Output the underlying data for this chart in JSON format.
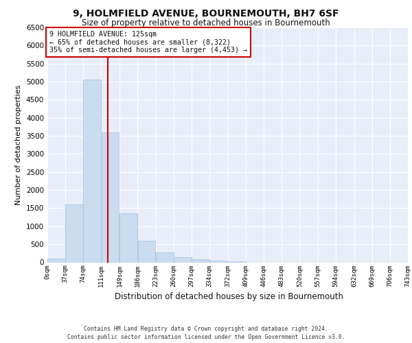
{
  "title": "9, HOLMFIELD AVENUE, BOURNEMOUTH, BH7 6SF",
  "subtitle": "Size of property relative to detached houses in Bournemouth",
  "xlabel": "Distribution of detached houses by size in Bournemouth",
  "ylabel": "Number of detached properties",
  "bar_color": "#c9dcf0",
  "bar_edge_color": "#aac4e0",
  "bg_color": "#e8eef8",
  "grid_color": "#ffffff",
  "annotation_box_color": "#cc0000",
  "property_line_color": "#cc0000",
  "property_value": 125,
  "annotation_line1": "9 HOLMFIELD AVENUE: 125sqm",
  "annotation_line2": "← 65% of detached houses are smaller (8,322)",
  "annotation_line3": "35% of semi-detached houses are larger (4,453) →",
  "footer1": "Contains HM Land Registry data © Crown copyright and database right 2024.",
  "footer2": "Contains public sector information licensed under the Open Government Licence v3.0.",
  "bin_edges": [
    0,
    37,
    74,
    111,
    149,
    186,
    223,
    260,
    297,
    334,
    372,
    409,
    446,
    483,
    520,
    557,
    594,
    632,
    669,
    706,
    743
  ],
  "bin_labels": [
    "0sqm",
    "37sqm",
    "74sqm",
    "111sqm",
    "149sqm",
    "186sqm",
    "223sqm",
    "260sqm",
    "297sqm",
    "334sqm",
    "372sqm",
    "409sqm",
    "446sqm",
    "483sqm",
    "520sqm",
    "557sqm",
    "594sqm",
    "632sqm",
    "669sqm",
    "706sqm",
    "743sqm"
  ],
  "bar_heights": [
    100,
    1600,
    5050,
    3600,
    1350,
    600,
    280,
    150,
    90,
    55,
    30,
    0,
    0,
    0,
    0,
    0,
    0,
    0,
    0,
    0
  ],
  "ylim": [
    0,
    6500
  ],
  "yticks": [
    0,
    500,
    1000,
    1500,
    2000,
    2500,
    3000,
    3500,
    4000,
    4500,
    5000,
    5500,
    6000,
    6500
  ]
}
